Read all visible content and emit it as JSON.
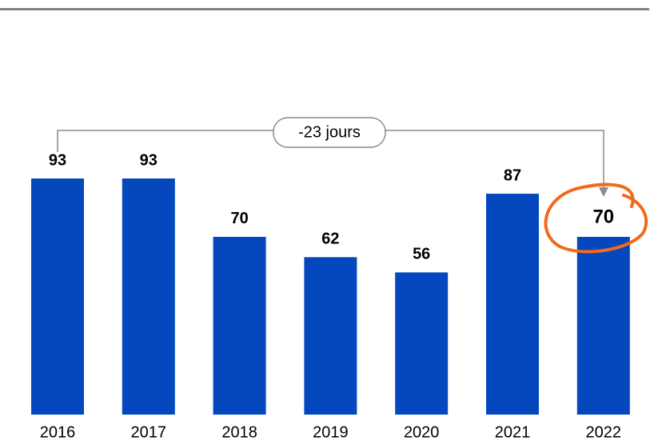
{
  "chart_data": {
    "type": "bar",
    "categories": [
      "2016",
      "2017",
      "2018",
      "2019",
      "2020",
      "2021",
      "2022"
    ],
    "values": [
      93,
      93,
      70,
      62,
      56,
      87,
      70
    ],
    "color": "#0548bd",
    "annotation": "-23 jours"
  }
}
